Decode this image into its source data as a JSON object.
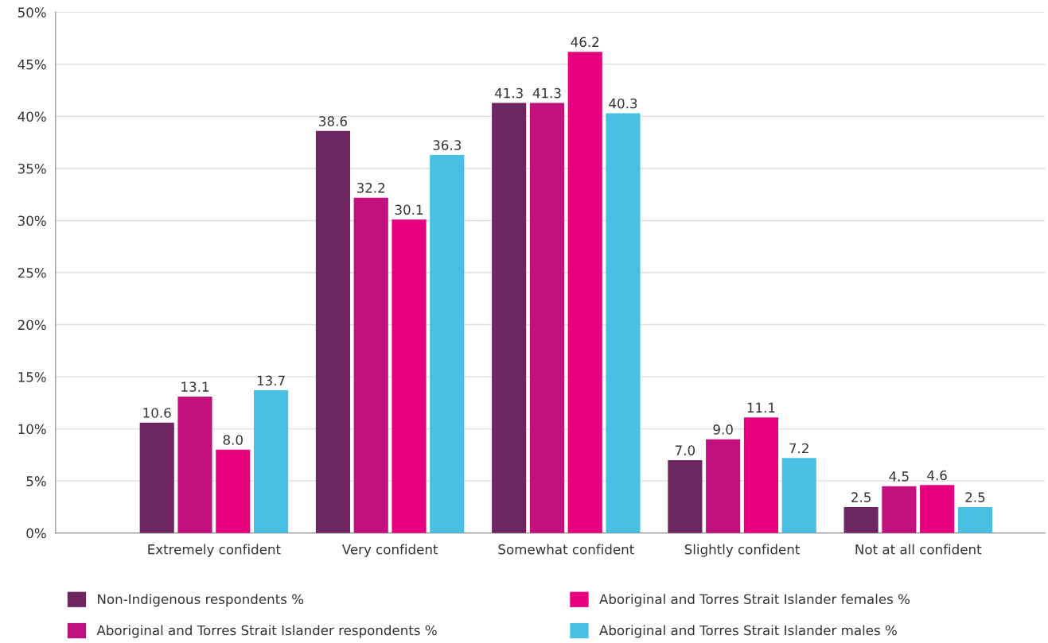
{
  "chart_data": {
    "type": "bar",
    "categories": [
      "Extremely confident",
      "Very confident",
      "Somewhat confident",
      "Slightly confident",
      "Not at all confident"
    ],
    "series": [
      {
        "name": "Non-Indigenous respondents %",
        "color": "#6d2660",
        "values": [
          10.6,
          38.6,
          41.3,
          7.0,
          2.5
        ],
        "value_labels": [
          "10.6",
          "38.6",
          "41.3",
          "7.0",
          "2.5"
        ]
      },
      {
        "name": "Aboriginal and Torres Strait Islander respondents %",
        "color": "#c0117f",
        "values": [
          13.1,
          32.2,
          41.3,
          9.0,
          4.5
        ],
        "value_labels": [
          "13.1",
          "32.2",
          "41.3",
          "9.0",
          "4.5"
        ]
      },
      {
        "name": "Aboriginal and Torres Strait Islander females %",
        "color": "#e6007e",
        "values": [
          8.0,
          30.1,
          46.2,
          11.1,
          4.6
        ],
        "value_labels": [
          "8.0",
          "30.1",
          "46.2",
          "11.1",
          "4.6"
        ]
      },
      {
        "name": "Aboriginal and Torres Strait Islander males %",
        "color": "#48bfe3",
        "values": [
          13.7,
          36.3,
          40.3,
          7.2,
          2.5
        ],
        "value_labels": [
          "13.7",
          "36.3",
          "40.3",
          "7.2",
          "2.5"
        ]
      }
    ],
    "ylim": [
      0,
      50
    ],
    "yticks": [
      {
        "value": 0,
        "label": "0%"
      },
      {
        "value": 5,
        "label": "5%"
      },
      {
        "value": 10,
        "label": "10%"
      },
      {
        "value": 15,
        "label": "15%"
      },
      {
        "value": 20,
        "label": "20%"
      },
      {
        "value": 25,
        "label": "25%"
      },
      {
        "value": 30,
        "label": "30%"
      },
      {
        "value": 35,
        "label": "35%"
      },
      {
        "value": 40,
        "label": "40%"
      },
      {
        "value": 45,
        "label": "45%"
      },
      {
        "value": 50,
        "label": "50%"
      }
    ],
    "grid": "y",
    "legend": "bottom"
  }
}
